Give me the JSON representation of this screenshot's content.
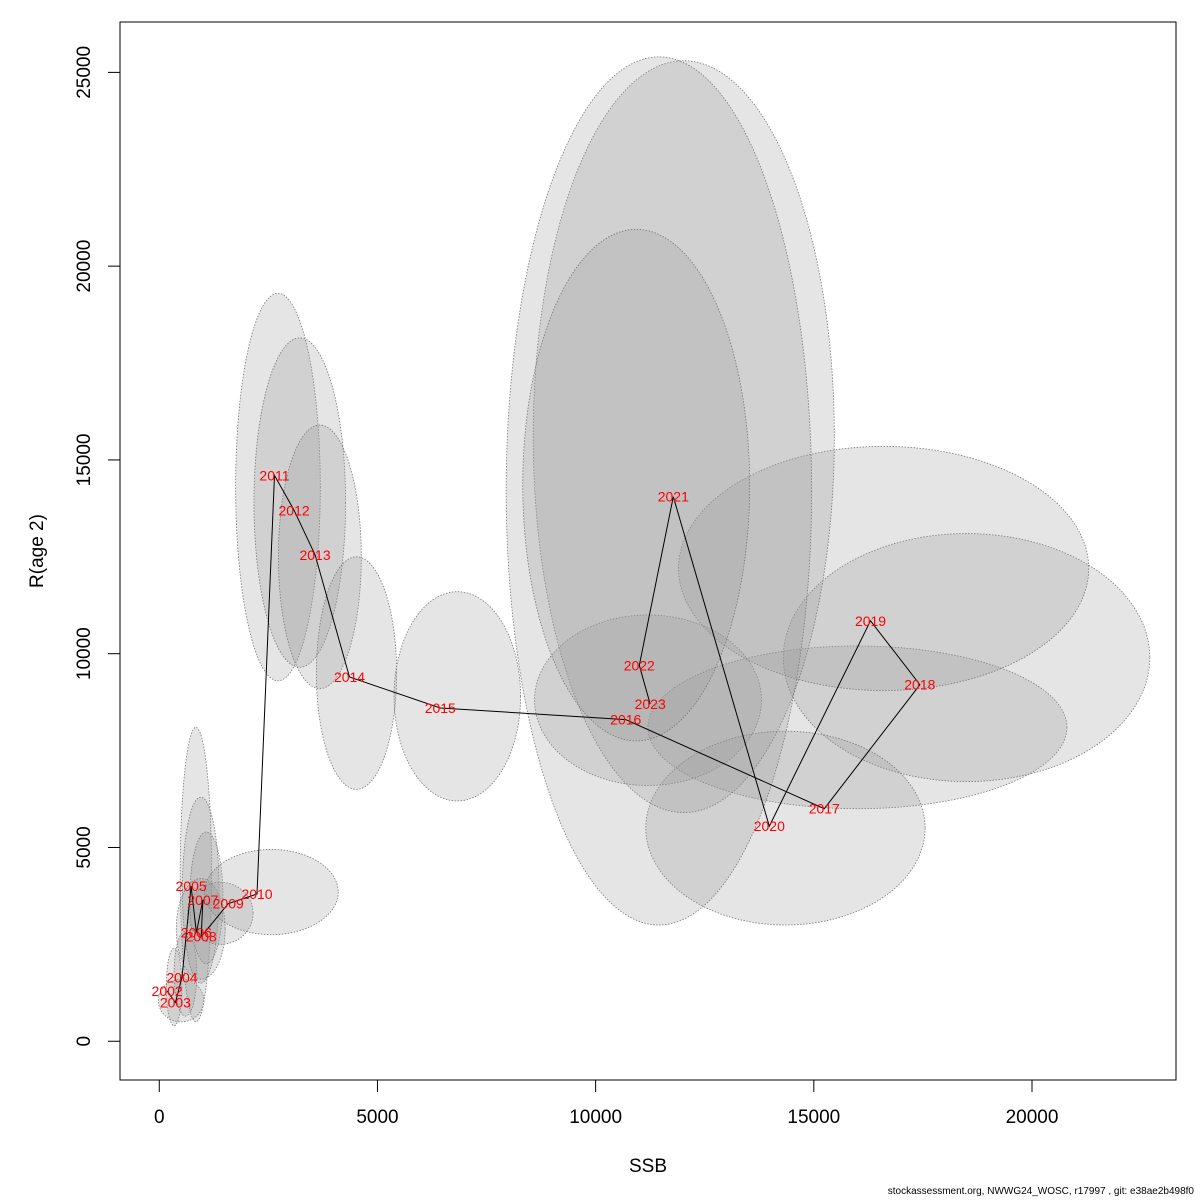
{
  "chart_data": {
    "type": "scatter",
    "xlabel": "SSB",
    "ylabel": "R(age 2)",
    "xlim": [
      -900,
      23300
    ],
    "ylim": [
      -1000,
      26300
    ],
    "x_ticks": [
      0,
      5000,
      10000,
      15000,
      20000
    ],
    "y_ticks": [
      0,
      5000,
      10000,
      15000,
      20000,
      25000
    ],
    "points": [
      {
        "label": "2002",
        "x": 180,
        "y": 1300
      },
      {
        "label": "2003",
        "x": 370,
        "y": 1000
      },
      {
        "label": "2004",
        "x": 520,
        "y": 1650
      },
      {
        "label": "2005",
        "x": 730,
        "y": 4000
      },
      {
        "label": "2006",
        "x": 850,
        "y": 2800
      },
      {
        "label": "2007",
        "x": 1000,
        "y": 3650
      },
      {
        "label": "2008",
        "x": 960,
        "y": 2700
      },
      {
        "label": "2009",
        "x": 1580,
        "y": 3550
      },
      {
        "label": "2010",
        "x": 2240,
        "y": 3800
      },
      {
        "label": "2011",
        "x": 2640,
        "y": 14600
      },
      {
        "label": "2012",
        "x": 3090,
        "y": 13700
      },
      {
        "label": "2013",
        "x": 3570,
        "y": 12550
      },
      {
        "label": "2014",
        "x": 4360,
        "y": 9400
      },
      {
        "label": "2015",
        "x": 6440,
        "y": 8600
      },
      {
        "label": "2016",
        "x": 10690,
        "y": 8300
      },
      {
        "label": "2017",
        "x": 15240,
        "y": 6000
      },
      {
        "label": "2018",
        "x": 17430,
        "y": 9200
      },
      {
        "label": "2019",
        "x": 16300,
        "y": 10850
      },
      {
        "label": "2020",
        "x": 13980,
        "y": 5550
      },
      {
        "label": "2021",
        "x": 11780,
        "y": 14050
      },
      {
        "label": "2022",
        "x": 11000,
        "y": 9700
      },
      {
        "label": "2023",
        "x": 11250,
        "y": 8700
      }
    ],
    "ellipses": [
      {
        "cx": 340,
        "cy": 1400,
        "rx": 180,
        "ry": 1000
      },
      {
        "cx": 500,
        "cy": 1050,
        "rx": 520,
        "ry": 550
      },
      {
        "cx": 600,
        "cy": 1750,
        "rx": 260,
        "ry": 1100
      },
      {
        "cx": 840,
        "cy": 4300,
        "rx": 360,
        "ry": 3800
      },
      {
        "cx": 950,
        "cy": 3900,
        "rx": 420,
        "ry": 2400
      },
      {
        "cx": 1080,
        "cy": 3700,
        "rx": 380,
        "ry": 1700
      },
      {
        "cx": 950,
        "cy": 2900,
        "rx": 560,
        "ry": 1300
      },
      {
        "cx": 1400,
        "cy": 3300,
        "rx": 750,
        "ry": 800
      },
      {
        "cx": 2570,
        "cy": 3850,
        "rx": 1530,
        "ry": 1100
      },
      {
        "cx": 2720,
        "cy": 14300,
        "rx": 970,
        "ry": 5000
      },
      {
        "cx": 3220,
        "cy": 13900,
        "rx": 1050,
        "ry": 4250
      },
      {
        "cx": 3680,
        "cy": 12500,
        "rx": 950,
        "ry": 3400
      },
      {
        "cx": 4520,
        "cy": 9500,
        "rx": 920,
        "ry": 3000
      },
      {
        "cx": 6830,
        "cy": 8900,
        "rx": 1450,
        "ry": 2700
      },
      {
        "cx": 11200,
        "cy": 8800,
        "rx": 2600,
        "ry": 2200
      },
      {
        "cx": 16000,
        "cy": 8100,
        "rx": 4800,
        "ry": 2100
      },
      {
        "cx": 18500,
        "cy": 9900,
        "rx": 4200,
        "ry": 3200
      },
      {
        "cx": 16600,
        "cy": 12200,
        "rx": 4700,
        "ry": 3150
      },
      {
        "cx": 14350,
        "cy": 5500,
        "rx": 3200,
        "ry": 2500
      },
      {
        "cx": 12020,
        "cy": 15600,
        "rx": 3450,
        "ry": 9700
      },
      {
        "cx": 11450,
        "cy": 14200,
        "rx": 3500,
        "ry": 11200
      },
      {
        "cx": 10930,
        "cy": 14350,
        "rx": 2600,
        "ry": 6600
      }
    ]
  },
  "footer": "stockassessment.org, NWWG24_WOSC, r17997 , git: e38ae2b498f0"
}
